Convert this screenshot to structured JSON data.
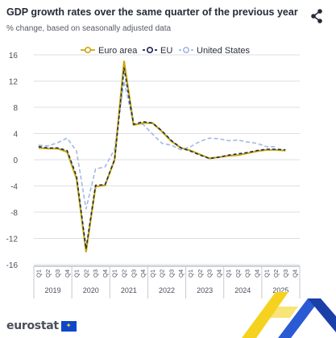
{
  "header": {
    "title": "GDP growth rates over the same quarter of the previous year",
    "subtitle": "% change, based on seasonally adjusted data",
    "share_icon": "share-icon"
  },
  "footer": {
    "logo_text": "eurostat",
    "logo_icon": "eu-flag-icon"
  },
  "colors": {
    "euro_area": "#c8a80e",
    "eu": "#1b2b55",
    "united_states": "#a3b7e3",
    "grid": "#dcdfe6",
    "axis_text": "#4a4f5c"
  },
  "chart_data": {
    "type": "line",
    "title": "GDP growth rates over the same quarter of the previous year",
    "subtitle": "% change, based on seasonally adjusted data",
    "ylim": [
      -16,
      16
    ],
    "yticks": [
      16,
      12,
      8,
      4,
      0,
      -4,
      -8,
      -12,
      -16
    ],
    "grid": true,
    "legend_position": "top",
    "quarters": [
      "Q1",
      "Q2",
      "Q3",
      "Q4",
      "Q1",
      "Q2",
      "Q3",
      "Q4",
      "Q1",
      "Q2",
      "Q3",
      "Q4",
      "Q1",
      "Q2",
      "Q3",
      "Q4",
      "Q1",
      "Q2",
      "Q3",
      "Q4",
      "Q1",
      "Q2",
      "Q3",
      "Q4",
      "Q1",
      "Q2",
      "Q3",
      "Q4"
    ],
    "years": [
      "2019",
      "2020",
      "2021",
      "2022",
      "2023",
      "2024",
      "2025"
    ],
    "series": [
      {
        "name": "Euro area",
        "style": "solid",
        "values": [
          1.8,
          1.7,
          1.7,
          1.2,
          -2.9,
          -14.0,
          -4.1,
          -3.9,
          0.0,
          15.0,
          5.3,
          5.6,
          5.6,
          4.3,
          2.8,
          1.8,
          1.4,
          0.8,
          0.2,
          0.4,
          0.6,
          0.7,
          1.0,
          1.3,
          1.5,
          1.5,
          1.4,
          null
        ]
      },
      {
        "name": "EU",
        "style": "dashed",
        "values": [
          2.0,
          1.8,
          1.8,
          1.4,
          -2.5,
          -13.6,
          -3.9,
          -3.8,
          0.0,
          14.0,
          5.4,
          5.8,
          5.6,
          4.4,
          2.9,
          1.8,
          1.3,
          0.7,
          0.2,
          0.4,
          0.7,
          0.9,
          1.1,
          1.4,
          1.6,
          1.6,
          1.5,
          null
        ]
      },
      {
        "name": "United States",
        "style": "dashed",
        "values": [
          2.2,
          2.1,
          2.6,
          3.3,
          1.3,
          -7.5,
          -1.4,
          -1.1,
          1.6,
          12.0,
          5.4,
          5.4,
          3.9,
          2.5,
          2.2,
          1.5,
          2.0,
          2.8,
          3.3,
          3.2,
          2.9,
          3.0,
          2.7,
          2.5,
          2.0,
          2.0,
          null,
          null
        ]
      }
    ]
  }
}
